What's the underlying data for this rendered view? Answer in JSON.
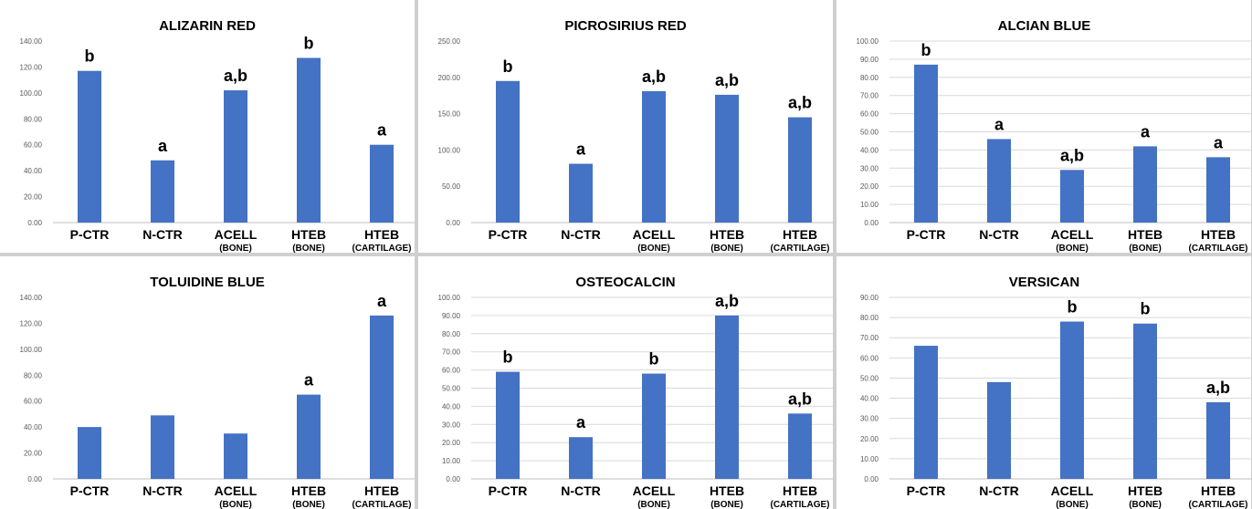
{
  "bar_color": "#4472C4",
  "chart_data": [
    {
      "type": "bar",
      "title": "ALIZARIN RED",
      "categories": [
        "P-CTR",
        "N-CTR",
        "ACELL",
        "HTEB",
        "HTEB"
      ],
      "subcategories": [
        "",
        "",
        "(BONE)",
        "(BONE)",
        "(CARTILAGE)"
      ],
      "values": [
        117,
        48,
        102,
        127,
        60
      ],
      "significance": [
        "b",
        "a",
        "a,b",
        "b",
        "a"
      ],
      "ylim": [
        0,
        140
      ],
      "yticks": [
        "0.00",
        "20.00",
        "40.00",
        "60.00",
        "80.00",
        "100.00",
        "120.00",
        "140.00"
      ],
      "grid": false
    },
    {
      "type": "bar",
      "title": "PICROSIRIUS RED",
      "categories": [
        "P-CTR",
        "N-CTR",
        "ACELL",
        "HTEB",
        "HTEB"
      ],
      "subcategories": [
        "",
        "",
        "(BONE)",
        "(BONE)",
        "(CARTILAGE)"
      ],
      "values": [
        195,
        81,
        181,
        176,
        145
      ],
      "significance": [
        "b",
        "a",
        "a,b",
        "a,b",
        "a,b"
      ],
      "ylim": [
        0,
        250
      ],
      "yticks": [
        "0.00",
        "50.00",
        "100.00",
        "150.00",
        "200.00",
        "250.00"
      ],
      "grid": false
    },
    {
      "type": "bar",
      "title": "ALCIAN BLUE",
      "categories": [
        "P-CTR",
        "N-CTR",
        "ACELL",
        "HTEB",
        "HTEB"
      ],
      "subcategories": [
        "",
        "",
        "(BONE)",
        "(BONE)",
        "(CARTILAGE)"
      ],
      "values": [
        87,
        46,
        29,
        42,
        36
      ],
      "significance": [
        "b",
        "a",
        "a,b",
        "a",
        "a"
      ],
      "ylim": [
        0,
        100
      ],
      "yticks": [
        "0.00",
        "10.00",
        "20.00",
        "30.00",
        "40.00",
        "50.00",
        "60.00",
        "70.00",
        "80.00",
        "90.00",
        "100.00"
      ],
      "grid": true
    },
    {
      "type": "bar",
      "title": "TOLUIDINE BLUE",
      "categories": [
        "P-CTR",
        "N-CTR",
        "ACELL",
        "HTEB",
        "HTEB"
      ],
      "subcategories": [
        "",
        "",
        "(BONE)",
        "(BONE)",
        "(CARTILAGE)"
      ],
      "values": [
        40,
        49,
        35,
        65,
        126
      ],
      "significance": [
        "",
        "",
        "",
        "a",
        "a"
      ],
      "ylim": [
        0,
        140
      ],
      "yticks": [
        "0.00",
        "20.00",
        "40.00",
        "60.00",
        "80.00",
        "100.00",
        "120.00",
        "140.00"
      ],
      "grid": false
    },
    {
      "type": "bar",
      "title": "OSTEOCALCIN",
      "categories": [
        "P-CTR",
        "N-CTR",
        "ACELL",
        "HTEB",
        "HTEB"
      ],
      "subcategories": [
        "",
        "",
        "(BONE)",
        "(BONE)",
        "(CARTILAGE)"
      ],
      "values": [
        59,
        23,
        58,
        90,
        36
      ],
      "significance": [
        "b",
        "a",
        "b",
        "a,b",
        "a,b"
      ],
      "ylim": [
        0,
        100
      ],
      "yticks": [
        "0.00",
        "10.00",
        "20.00",
        "30.00",
        "40.00",
        "50.00",
        "60.00",
        "70.00",
        "80.00",
        "90.00",
        "100.00"
      ],
      "grid": true
    },
    {
      "type": "bar",
      "title": "VERSICAN",
      "categories": [
        "P-CTR",
        "N-CTR",
        "ACELL",
        "HTEB",
        "HTEB"
      ],
      "subcategories": [
        "",
        "",
        "(BONE)",
        "(BONE)",
        "(CARTILAGE)"
      ],
      "values": [
        66,
        48,
        78,
        77,
        38
      ],
      "significance": [
        "",
        "",
        "b",
        "b",
        "a,b"
      ],
      "ylim": [
        0,
        90
      ],
      "yticks": [
        "0.00",
        "10.00",
        "20.00",
        "30.00",
        "40.00",
        "50.00",
        "60.00",
        "70.00",
        "80.00",
        "90.00"
      ],
      "grid": true
    }
  ]
}
